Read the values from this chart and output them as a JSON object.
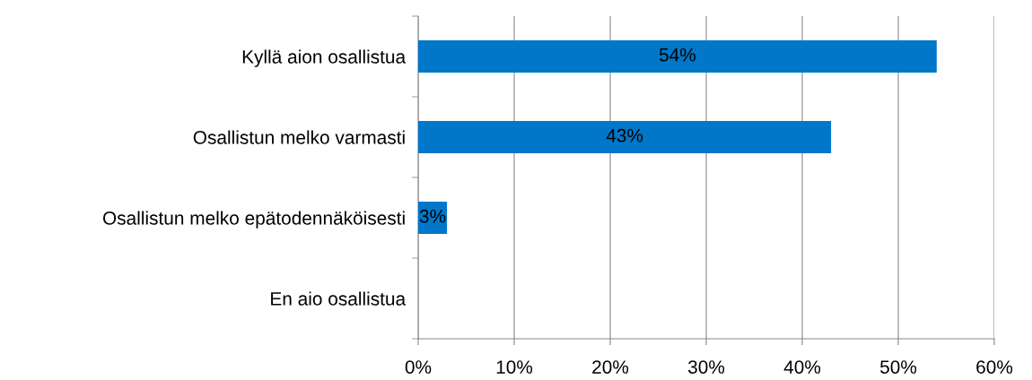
{
  "chart_data": {
    "type": "bar",
    "orientation": "horizontal",
    "categories": [
      "Kyllä aion osallistua",
      "Osallistun melko varmasti",
      "Osallistun melko epätodennäköisesti",
      "En aio osallistua"
    ],
    "values": [
      54,
      43,
      3,
      0
    ],
    "value_labels": [
      "54%",
      "43%",
      "3%",
      null
    ],
    "color": "#0077c8",
    "xlim": [
      0,
      60
    ],
    "xticks": [
      {
        "value": 0,
        "label": "0%"
      },
      {
        "value": 10,
        "label": "10%"
      },
      {
        "value": 20,
        "label": "20%"
      },
      {
        "value": 30,
        "label": "30%"
      },
      {
        "value": 40,
        "label": "40%"
      },
      {
        "value": 50,
        "label": "50%"
      },
      {
        "value": 60,
        "label": "60%"
      }
    ],
    "grid": "x",
    "legend": false
  }
}
